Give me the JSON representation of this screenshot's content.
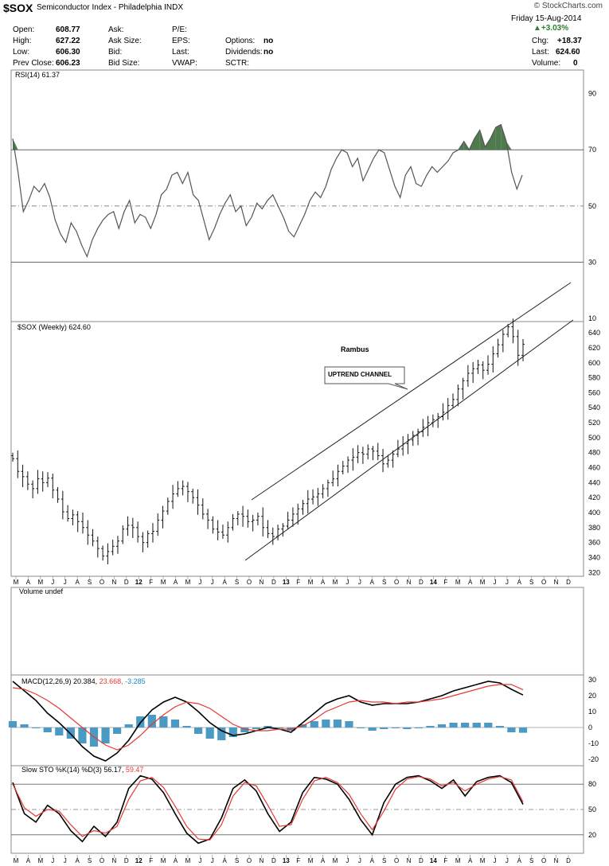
{
  "header": {
    "symbol": "$SOX",
    "description": "Semiconductor Index - Philadelphia  INDX",
    "brand": "© StockCharts.com",
    "date": "Friday  15-Aug-2014",
    "change_pct": "+3.03%",
    "quote": [
      {
        "label": "Open:",
        "value": "608.77"
      },
      {
        "label": "High:",
        "value": "627.22"
      },
      {
        "label": "Low:",
        "value": "606.30"
      },
      {
        "label": "Prev Close:",
        "value": "606.23"
      }
    ],
    "col2": [
      "Ask:",
      "Ask Size:",
      "Bid:",
      "Bid Size:"
    ],
    "col3": [
      "P/E:",
      "EPS:",
      "Last:",
      "VWAP:"
    ],
    "col4": [
      {
        "label": "Options:",
        "value": "no"
      },
      {
        "label": "Dividends:",
        "value": "no"
      },
      {
        "label": "SCTR:",
        "value": ""
      }
    ],
    "right": [
      {
        "label": "Chg:",
        "value": "+18.37"
      },
      {
        "label": "Last:",
        "value": "624.60"
      },
      {
        "label": "Volume:",
        "value": "0"
      }
    ]
  },
  "months": [
    "M",
    "A",
    "M",
    "J",
    "J",
    "A",
    "S",
    "O",
    "N",
    "D",
    "12",
    "F",
    "M",
    "A",
    "M",
    "J",
    "J",
    "A",
    "S",
    "O",
    "N",
    "D",
    "13",
    "F",
    "M",
    "A",
    "M",
    "J",
    "J",
    "A",
    "S",
    "O",
    "N",
    "D",
    "14",
    "F",
    "M",
    "A",
    "M",
    "J",
    "J",
    "A",
    "S",
    "O",
    "N",
    "D"
  ],
  "chart_data": [
    {
      "type": "line",
      "panel": "rsi",
      "legend": "RSI(14) 61.37",
      "yticks": [
        10,
        30,
        50,
        70,
        90
      ],
      "ylim": [
        10,
        95
      ],
      "reference_lines": [
        70,
        50,
        30
      ],
      "values": [
        74,
        62,
        48,
        52,
        57,
        55,
        58,
        53,
        45,
        40,
        37,
        44,
        41,
        36,
        32,
        38,
        42,
        45,
        47,
        48,
        42,
        48,
        52,
        44,
        47,
        46,
        42,
        47,
        54,
        56,
        61,
        62,
        58,
        62,
        54,
        52,
        45,
        38,
        42,
        47,
        51,
        54,
        48,
        50,
        43,
        46,
        51,
        49,
        52,
        54,
        50,
        46,
        41,
        39,
        43,
        47,
        52,
        55,
        53,
        57,
        63,
        67,
        70,
        69,
        64,
        67,
        59,
        63,
        67,
        70,
        69,
        63,
        57,
        53,
        61,
        64,
        58,
        57,
        61,
        64,
        62,
        64,
        66,
        69,
        70,
        73,
        70,
        74,
        77,
        71,
        74,
        78,
        79,
        73,
        62,
        56,
        61
      ]
    },
    {
      "type": "ohlc",
      "panel": "price",
      "legend": "$SOX (Weekly) 624.60",
      "yticks": [
        320,
        340,
        360,
        380,
        400,
        420,
        440,
        460,
        480,
        500,
        520,
        540,
        560,
        580,
        600,
        620,
        640
      ],
      "ylim": [
        315,
        655
      ],
      "closes": [
        472,
        455,
        448,
        438,
        432,
        445,
        440,
        446,
        430,
        418,
        401,
        392,
        397,
        388,
        380,
        370,
        362,
        352,
        342,
        348,
        355,
        362,
        378,
        383,
        380,
        368,
        360,
        372,
        375,
        390,
        402,
        415,
        425,
        432,
        435,
        428,
        420,
        410,
        398,
        390,
        378,
        374,
        370,
        380,
        392,
        398,
        395,
        388,
        390,
        395,
        380,
        372,
        368,
        378,
        382,
        390,
        398,
        405,
        412,
        418,
        421,
        425,
        432,
        440,
        445,
        455,
        462,
        470,
        474,
        480,
        478,
        485,
        482,
        476,
        465,
        470,
        478,
        485,
        492,
        497,
        503,
        508,
        514,
        520,
        524,
        528,
        534,
        543,
        551,
        565,
        576,
        586,
        592,
        597,
        590,
        598,
        612,
        624,
        638,
        648,
        635,
        610,
        624.6
      ],
      "annotations": [
        "Rambus",
        "UPTREND CHANNEL"
      ]
    },
    {
      "type": "bar",
      "panel": "volume",
      "legend": "Volume undef"
    },
    {
      "type": "line",
      "panel": "macd",
      "legend_parts": [
        {
          "text": "MACD(12,26,9)",
          "color": "#000000"
        },
        {
          "text": "20.384,",
          "color": "#000000"
        },
        {
          "text": "23.668,",
          "color": "#e53935"
        },
        {
          "text": "-3.285",
          "color": "#1e88c9"
        }
      ],
      "yticks": [
        -20,
        -10,
        0,
        10,
        20,
        30
      ],
      "ylim": [
        -23,
        32
      ],
      "series": [
        {
          "color": "#000000",
          "values": [
            29,
            23,
            17,
            9,
            3,
            -4,
            -12,
            -18,
            -21,
            -16,
            -8,
            3,
            11,
            16,
            19,
            16,
            10,
            3,
            -2,
            -5,
            -4,
            -2,
            0,
            -1,
            -3,
            3,
            9,
            15,
            18,
            20,
            16,
            14,
            15,
            15,
            15,
            16,
            18,
            20,
            23,
            25,
            27,
            29,
            28,
            24,
            20.4
          ]
        },
        {
          "color": "#e53935",
          "values": [
            25,
            24,
            21,
            17,
            12,
            6,
            0,
            -6,
            -11,
            -14,
            -11,
            -5,
            2,
            8,
            13,
            16,
            15,
            12,
            7,
            2,
            -1,
            -2,
            -2,
            -1,
            -1,
            1,
            5,
            10,
            13,
            16,
            17,
            16,
            16,
            15,
            16,
            16,
            17,
            18,
            20,
            22,
            24,
            26,
            27,
            27,
            23.7
          ]
        }
      ],
      "histogram": [
        4,
        2,
        0,
        -3,
        -5,
        -7,
        -10,
        -12,
        -10,
        -4,
        2,
        7,
        8,
        7,
        5,
        1,
        -4,
        -7,
        -8,
        -6,
        -3,
        -1,
        1,
        0,
        -2,
        2,
        4,
        5,
        5,
        4,
        0,
        -2,
        -1,
        0,
        -1,
        0,
        1,
        2,
        3,
        3,
        3,
        3,
        1,
        -3,
        -3.3
      ]
    },
    {
      "type": "line",
      "panel": "stochastic",
      "legend_parts": [
        {
          "text": "Slow STO %K(14) %D(3) 56.17,",
          "color": "#000000"
        },
        {
          "text": "59.47",
          "color": "#e53935"
        }
      ],
      "yticks": [
        20,
        50,
        80
      ],
      "ylim": [
        0,
        100
      ],
      "reference_lines": [
        80,
        50,
        20
      ],
      "series": [
        {
          "color": "#000000",
          "values": [
            82,
            45,
            35,
            55,
            45,
            25,
            12,
            30,
            18,
            35,
            75,
            90,
            86,
            70,
            45,
            22,
            10,
            15,
            40,
            75,
            85,
            72,
            45,
            24,
            35,
            70,
            88,
            86,
            80,
            62,
            38,
            20,
            58,
            80,
            88,
            90,
            84,
            75,
            85,
            66,
            83,
            88,
            90,
            82,
            56
          ]
        },
        {
          "color": "#e53935",
          "values": [
            80,
            52,
            42,
            50,
            48,
            32,
            18,
            25,
            22,
            30,
            62,
            84,
            88,
            76,
            54,
            30,
            15,
            14,
            32,
            66,
            82,
            78,
            55,
            30,
            32,
            62,
            84,
            88,
            82,
            68,
            45,
            26,
            48,
            74,
            86,
            89,
            86,
            78,
            82,
            72,
            80,
            86,
            89,
            85,
            59
          ]
        }
      ]
    }
  ]
}
